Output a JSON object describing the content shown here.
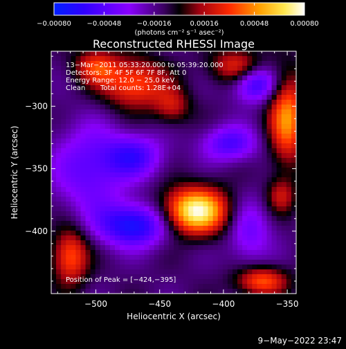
{
  "chart_data": {
    "type": "heatmap",
    "title": "Reconstructed RHESSI Image",
    "xlabel": "Heliocentric X (arcsec)",
    "ylabel": "Heliocentric Y (arcsec)",
    "xlim": [
      -535,
      -343
    ],
    "ylim": [
      -450,
      -256
    ],
    "x_ticks": [
      -500,
      -450,
      -400,
      -350
    ],
    "y_ticks": [
      -300,
      -350,
      -400
    ],
    "x_tick_labels": [
      "−500",
      "−450",
      "−400",
      "−350"
    ],
    "y_tick_labels": [
      "−300",
      "−350",
      "−400"
    ],
    "colorbar": {
      "range": [
        -0.0008,
        0.0008
      ],
      "ticks": [
        -0.0008,
        -0.00048,
        -0.00016,
        0.00016,
        0.00048,
        0.0008
      ],
      "tick_labels": [
        "−0.00080",
        "−0.00048",
        "−0.00016",
        "0.00016",
        "0.00048",
        "0.00080"
      ],
      "unit_label": "(photons cm⁻² s⁻¹ asec⁻²)"
    },
    "annotations": {
      "time": "13−Mar−2011 05:33:20.000 to 05:39:20.000",
      "detectors": "Detectors: 3F 4F 5F 6F 7F 8F, Att 0",
      "energy": "Energy Range: 12.0 − 25.0 keV",
      "method": "Clean",
      "counts": "Total counts: 1.28E+04",
      "peak": "Position of Peak = [−424,−395]"
    },
    "peak_position": [
      -424,
      -395
    ],
    "sources": [
      {
        "x": -422,
        "y": -384,
        "sx": 18,
        "sy": 13,
        "amp": 0.0009
      },
      {
        "x": -350,
        "y": -310,
        "sx": 10,
        "sy": 25,
        "amp": 0.0006
      },
      {
        "x": -470,
        "y": -282,
        "sx": 18,
        "sy": 14,
        "amp": 0.0005
      },
      {
        "x": -390,
        "y": -268,
        "sx": 14,
        "sy": 10,
        "amp": 0.0004
      },
      {
        "x": -500,
        "y": -268,
        "sx": 12,
        "sy": 10,
        "amp": 0.0004
      },
      {
        "x": -520,
        "y": -420,
        "sx": 10,
        "sy": 16,
        "amp": 0.0005
      },
      {
        "x": -370,
        "y": -440,
        "sx": 14,
        "sy": 8,
        "amp": 0.0005
      },
      {
        "x": -355,
        "y": -372,
        "sx": 8,
        "sy": 10,
        "amp": 0.0003
      },
      {
        "x": -440,
        "y": -300,
        "sx": 10,
        "sy": 10,
        "amp": 0.0003
      },
      {
        "x": -470,
        "y": -340,
        "sx": 16,
        "sy": 12,
        "amp": -0.0004
      },
      {
        "x": -395,
        "y": -330,
        "sx": 15,
        "sy": 10,
        "amp": -0.0004
      },
      {
        "x": -505,
        "y": -350,
        "sx": 20,
        "sy": 25,
        "amp": -0.00035
      },
      {
        "x": -470,
        "y": -395,
        "sx": 20,
        "sy": 12,
        "amp": -0.0006
      },
      {
        "x": -375,
        "y": -282,
        "sx": 12,
        "sy": 10,
        "amp": -0.0005
      },
      {
        "x": -380,
        "y": -400,
        "sx": 12,
        "sy": 18,
        "amp": -0.0003
      }
    ]
  },
  "footer": {
    "timestamp": "9−May−2022 23:47"
  }
}
